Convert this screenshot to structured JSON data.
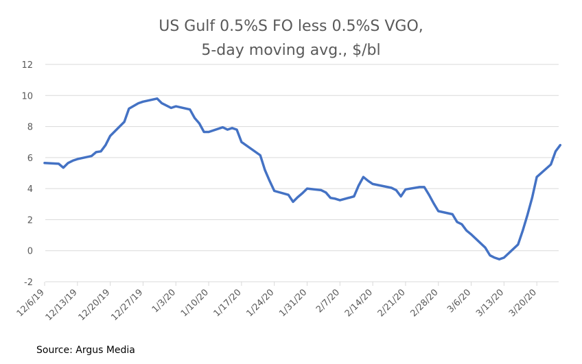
{
  "chart_data": {
    "type": "line",
    "title": "US Gulf 0.5%S FO less 0.5%S VGO,",
    "subtitle": "5-day moving avg., $/bl",
    "xlabel": "",
    "ylabel": "",
    "ylim": [
      -2,
      12
    ],
    "yticks": [
      -2,
      0,
      2,
      4,
      6,
      8,
      10,
      12
    ],
    "x_ticks": [
      "12/6/19",
      "12/13/19",
      "12/20/19",
      "12/27/19",
      "1/3/20",
      "1/10/20",
      "1/17/20",
      "1/24/20",
      "1/31/20",
      "2/7/20",
      "2/14/20",
      "2/21/20",
      "2/28/20",
      "3/6/20",
      "3/13/20",
      "3/20/20"
    ],
    "x_start": "12/6/19",
    "grid": true,
    "line_color": "#4472C4",
    "series": [
      {
        "name": "",
        "x": [
          "12/6/19",
          "12/9/19",
          "12/10/19",
          "12/11/19",
          "12/12/19",
          "12/13/19",
          "12/16/19",
          "12/17/19",
          "12/18/19",
          "12/19/19",
          "12/20/19",
          "12/23/19",
          "12/24/19",
          "12/26/19",
          "12/27/19",
          "12/30/19",
          "12/31/19",
          "1/2/20",
          "1/3/20",
          "1/6/20",
          "1/7/20",
          "1/8/20",
          "1/9/20",
          "1/10/20",
          "1/13/20",
          "1/14/20",
          "1/15/20",
          "1/16/20",
          "1/17/20",
          "1/21/20",
          "1/22/20",
          "1/23/20",
          "1/24/20",
          "1/27/20",
          "1/28/20",
          "1/29/20",
          "1/30/20",
          "1/31/20",
          "2/3/20",
          "2/4/20",
          "2/5/20",
          "2/6/20",
          "2/7/20",
          "2/10/20",
          "2/11/20",
          "2/12/20",
          "2/13/20",
          "2/14/20",
          "2/18/20",
          "2/19/20",
          "2/20/20",
          "2/21/20",
          "2/24/20",
          "2/25/20",
          "2/26/20",
          "2/27/20",
          "2/28/20",
          "3/2/20",
          "3/3/20",
          "3/4/20",
          "3/5/20",
          "3/6/20",
          "3/9/20",
          "3/10/20",
          "3/11/20",
          "3/12/20",
          "3/13/20",
          "3/16/20",
          "3/17/20",
          "3/18/20",
          "3/19/20",
          "3/20/20",
          "3/23/20",
          "3/24/20",
          "3/25/20"
        ],
        "values": [
          5.65,
          5.6,
          5.35,
          5.65,
          5.8,
          5.9,
          6.1,
          6.35,
          6.4,
          6.8,
          7.4,
          8.3,
          9.15,
          9.5,
          9.6,
          9.8,
          9.5,
          9.2,
          9.3,
          9.1,
          8.55,
          8.2,
          7.65,
          7.65,
          7.95,
          7.8,
          7.9,
          7.8,
          7.0,
          6.15,
          5.2,
          4.5,
          3.85,
          3.6,
          3.15,
          3.45,
          3.7,
          4.0,
          3.9,
          3.75,
          3.4,
          3.35,
          3.25,
          3.5,
          4.2,
          4.75,
          4.5,
          4.3,
          4.05,
          3.9,
          3.5,
          3.95,
          4.1,
          4.1,
          3.6,
          3.05,
          2.55,
          2.35,
          1.85,
          1.7,
          1.3,
          1.05,
          0.2,
          -0.3,
          -0.45,
          -0.55,
          -0.45,
          0.4,
          1.3,
          2.3,
          3.4,
          4.75,
          5.55,
          6.4,
          6.8
        ]
      }
    ]
  },
  "footer": {
    "source": "Source: Argus Media"
  }
}
